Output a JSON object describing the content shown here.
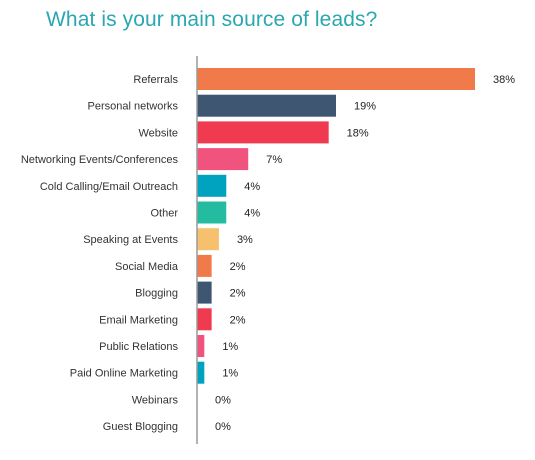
{
  "chart_data": {
    "type": "bar",
    "orientation": "horizontal",
    "title": "What is your main source of leads?",
    "categories": [
      "Referrals",
      "Personal networks",
      "Website",
      "Networking Events/Conferences",
      "Cold Calling/Email Outreach",
      "Other",
      "Speaking at Events",
      "Social Media",
      "Blogging",
      "Email Marketing",
      "Public Relations",
      "Paid Online Marketing",
      "Webinars",
      "Guest Blogging"
    ],
    "values": [
      38,
      19,
      18,
      7,
      4,
      4,
      3,
      2,
      2,
      2,
      1,
      1,
      0,
      0
    ],
    "value_labels": [
      "38%",
      "19%",
      "18%",
      "7%",
      "4%",
      "4%",
      "3%",
      "2%",
      "2%",
      "2%",
      "1%",
      "1%",
      "0%",
      "0%"
    ],
    "colors": [
      "#f07a4a",
      "#3f5672",
      "#ef3a4f",
      "#f0547e",
      "#00a3bf",
      "#23bca0",
      "#f5c16e",
      "#f07a4a",
      "#3f5672",
      "#ef3a4f",
      "#f0547e",
      "#00a3bf",
      "#23bca0",
      "#f5c16e"
    ],
    "xlim": [
      0,
      38
    ],
    "grid": false,
    "legend": "none"
  }
}
